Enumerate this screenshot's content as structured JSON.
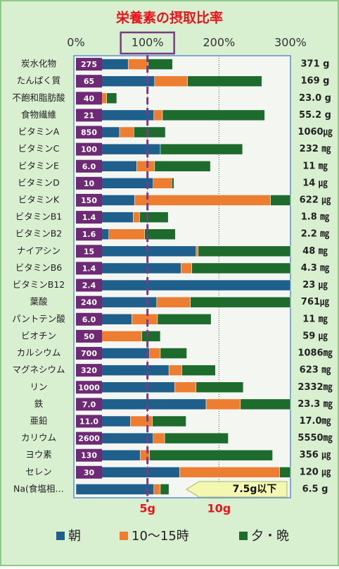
{
  "chart_data": {
    "type": "stacked-barh",
    "title": "栄養素の摂取比率",
    "categories": [
      "炭水化物",
      "たんぱく質",
      "不飽和脂肪酸",
      "食物繊維",
      "ビタミンA",
      "ビタミンC",
      "ビタミンE",
      "ビタミンD",
      "ビタミンK",
      "ビタミンB1",
      "ビタミンB2",
      "ナイアシン",
      "ビタミンB6",
      "ビタミンB12",
      "葉酸",
      "パントテン酸",
      "ビオチン",
      "カルシウム",
      "マグネシウム",
      "リン",
      "鉄",
      "亜鉛",
      "カリウム",
      "ヨウ素",
      "セレン",
      "Na(食塩相…"
    ],
    "requirement_labels": [
      "275",
      "65",
      "40",
      "21",
      "850",
      "100",
      "6.0",
      "10",
      "150",
      "1.4",
      "1.6",
      "15",
      "1.4",
      "2.4",
      "240",
      "6.0",
      "50",
      "700",
      "320",
      "1000",
      "7.0",
      "11.0",
      "2600",
      "130",
      "30",
      null
    ],
    "intake_labels": [
      "371 g",
      "169 g",
      "23.0 g",
      "55.2 g",
      "1060㎍",
      "232 ㎎",
      "11 ㎎",
      "14 ㎍",
      "622 ㎍",
      "1.8 ㎎",
      "2.2 ㎎",
      "48 ㎎",
      "4.3 ㎎",
      "23 ㎍",
      "761㎍",
      "11 ㎎",
      "59 ㎍",
      "1086㎎",
      "623 ㎎",
      "2332㎎",
      "23.3 ㎎",
      "17.0㎎",
      "5550㎎",
      "356 ㎍",
      "120 ㎍",
      "6.5 g"
    ],
    "series": [
      {
        "name": "朝",
        "color": "#1f5f8b",
        "values": [
          73,
          110,
          22,
          109,
          61,
          118,
          85,
          108,
          82,
          80,
          46,
          168,
          147,
          300,
          113,
          78,
          22,
          103,
          130,
          138,
          182,
          76,
          108,
          90,
          145,
          109
        ]
      },
      {
        "name": "10〜15時",
        "color": "#ed7d31",
        "values": [
          28,
          46,
          21,
          12,
          20,
          0,
          25,
          26,
          190,
          9,
          50,
          3,
          15,
          0,
          47,
          36,
          70,
          15,
          18,
          30,
          48,
          31,
          16,
          13,
          140,
          9
        ]
      },
      {
        "name": "夕・晩",
        "color": "#1e6b2e",
        "values": [
          34,
          104,
          14,
          143,
          44,
          115,
          78,
          3,
          28,
          40,
          43,
          129,
          138,
          0,
          140,
          75,
          26,
          37,
          47,
          66,
          70,
          47,
          89,
          172,
          15,
          12
        ]
      }
    ],
    "xlim": [
      0,
      300
    ],
    "xticks": [
      {
        "value": 0,
        "label": "0%"
      },
      {
        "value": 100,
        "label": "100%"
      },
      {
        "value": 200,
        "label": "200%"
      },
      {
        "value": 300,
        "label": "300%"
      }
    ],
    "x2lim": [
      0,
      15
    ],
    "x2ticks": [
      {
        "value": 5,
        "label": "5g"
      },
      {
        "value": 10,
        "label": "10g"
      }
    ],
    "reference_line": 100,
    "annotation": "7.5g以下",
    "legend": "bottom"
  }
}
